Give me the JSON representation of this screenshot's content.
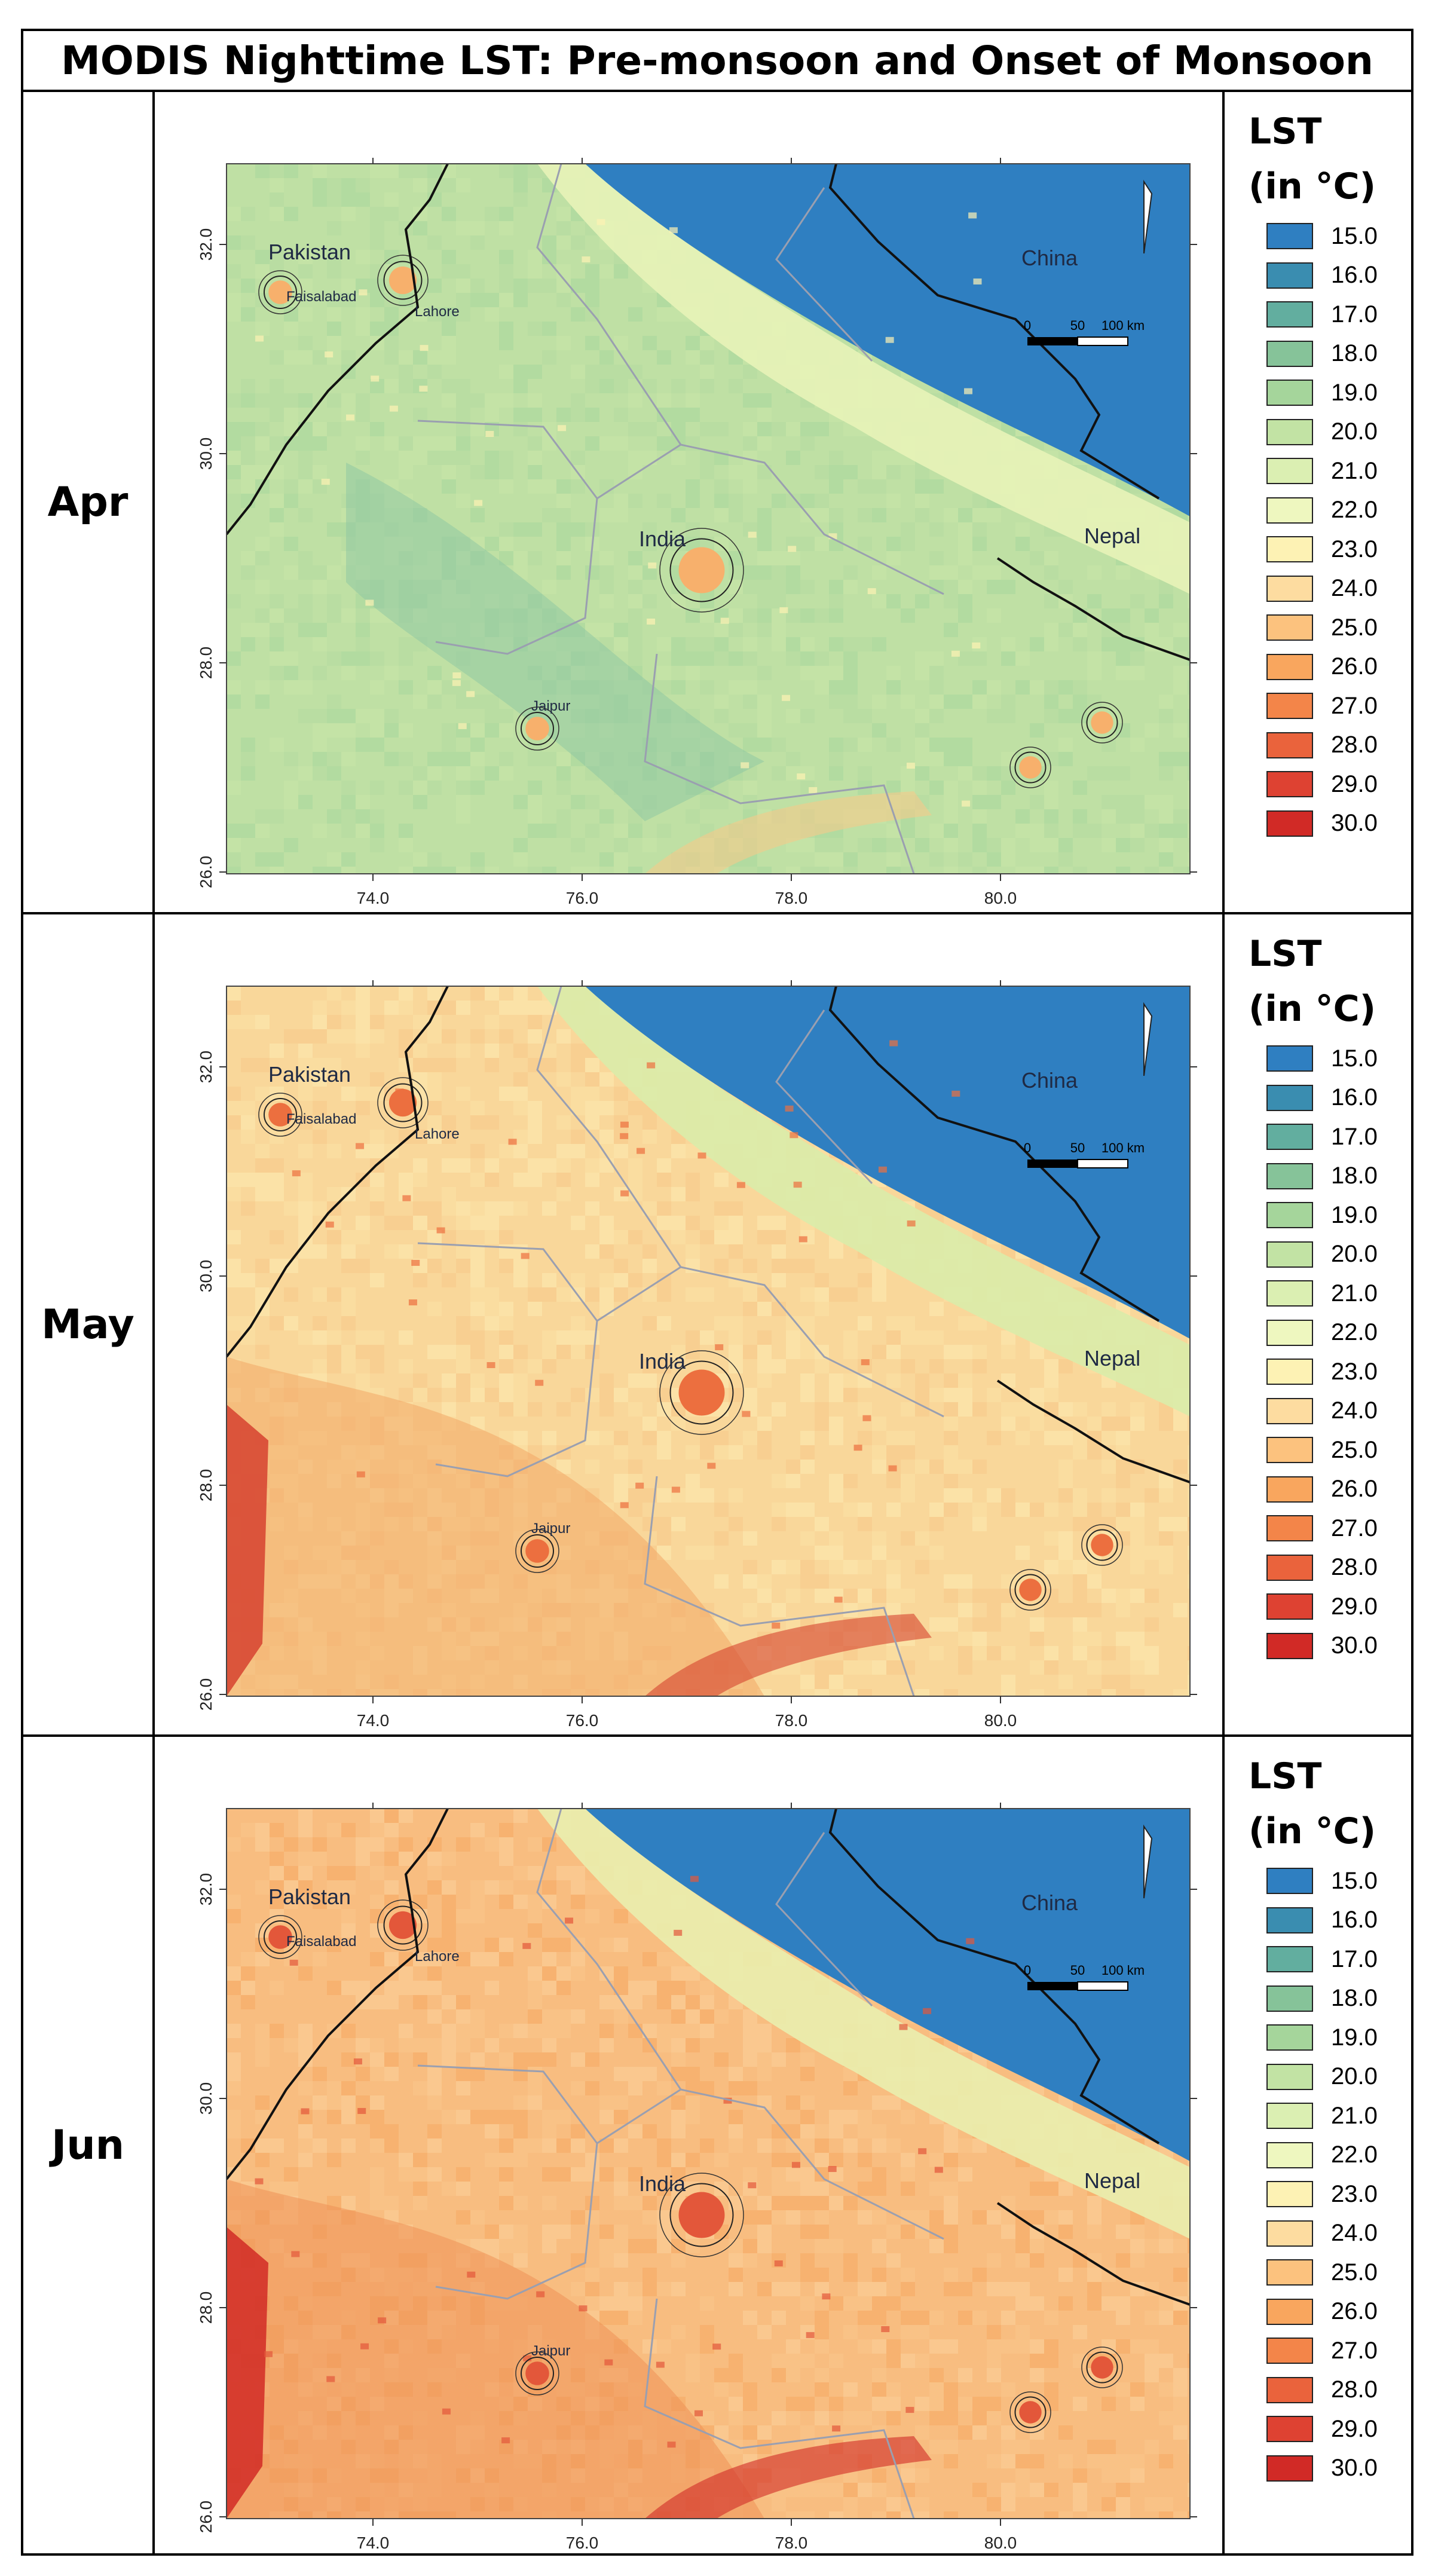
{
  "title": "MODIS Nighttime LST: Pre-monsoon and Onset of Monsoon",
  "panels": [
    {
      "month": "Apr",
      "theme": "apr"
    },
    {
      "month": "May",
      "theme": "may"
    },
    {
      "month": "Jun",
      "theme": "jun"
    }
  ],
  "legend": {
    "title_line1": "LST",
    "title_line2": "(in °C)",
    "items": [
      {
        "label": "15.0",
        "color": "#2f7fc1"
      },
      {
        "label": "16.0",
        "color": "#3a8db0"
      },
      {
        "label": "17.0",
        "color": "#62ae9f"
      },
      {
        "label": "18.0",
        "color": "#86c399"
      },
      {
        "label": "19.0",
        "color": "#a5d59b"
      },
      {
        "label": "20.0",
        "color": "#c2e3a4"
      },
      {
        "label": "21.0",
        "color": "#dbefb2"
      },
      {
        "label": "22.0",
        "color": "#eef7bf"
      },
      {
        "label": "23.0",
        "color": "#fdf2b4"
      },
      {
        "label": "24.0",
        "color": "#fddca0"
      },
      {
        "label": "25.0",
        "color": "#fcc27e"
      },
      {
        "label": "26.0",
        "color": "#f9a65e"
      },
      {
        "label": "27.0",
        "color": "#f38549"
      },
      {
        "label": "28.0",
        "color": "#ea633c"
      },
      {
        "label": "29.0",
        "color": "#de4232"
      },
      {
        "label": "30.0",
        "color": "#d12a26"
      }
    ]
  },
  "map": {
    "x_ticks": [
      "74.0",
      "76.0",
      "78.0",
      "80.0"
    ],
    "y_ticks": [
      "32.0",
      "30.0",
      "28.0",
      "26.0"
    ],
    "places": {
      "pakistan": "Pakistan",
      "faisalabad": "Faisalabad",
      "lahore": "Lahore",
      "india": "India",
      "jaipur": "Jaipur",
      "china": "China",
      "nepal": "Nepal"
    },
    "scale_labels": [
      "0",
      "50",
      "100 km"
    ],
    "colors": {
      "mountain": "#2f7fc1",
      "border": "#111111",
      "state_line": "#9a9fb0"
    }
  }
}
